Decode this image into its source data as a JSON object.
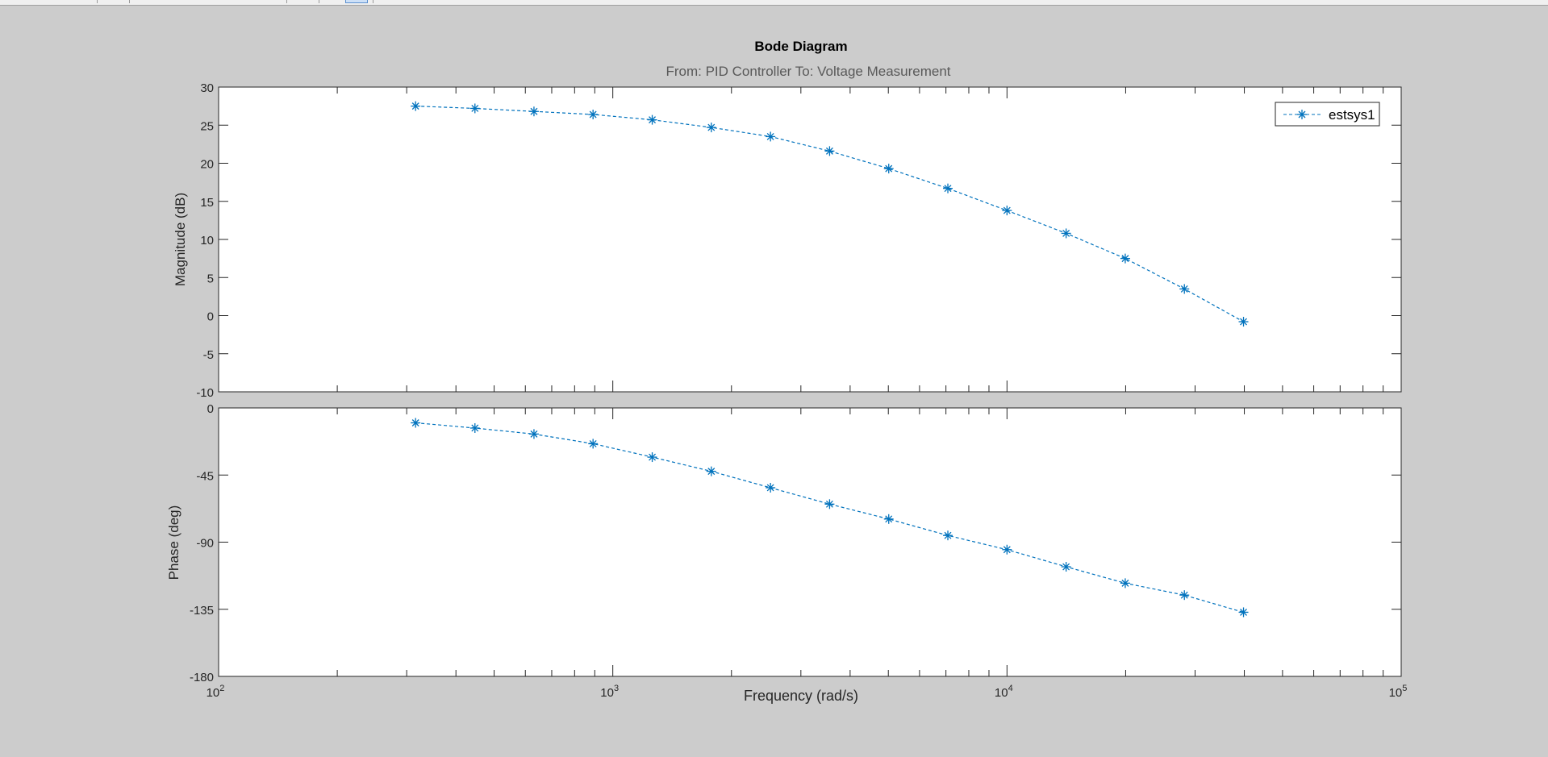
{
  "colors": {
    "figure_background": "#cccccc",
    "axes_background": "#ffffff",
    "axes_edge": "#262626",
    "title_text": "#000000",
    "subtitle_text": "#595959",
    "series_color": "#0072bd"
  },
  "chart_data": {
    "type": "line",
    "title": "Bode Diagram",
    "subtitle": "From: PID Controller  To: Voltage Measurement",
    "xlabel": "Frequency  (rad/s)",
    "x_scale": "log",
    "xlim": [
      100,
      100000
    ],
    "x_ticks": [
      {
        "value": 100,
        "base": "10",
        "exp": "2"
      },
      {
        "value": 1000,
        "base": "10",
        "exp": "3"
      },
      {
        "value": 10000,
        "base": "10",
        "exp": "4"
      },
      {
        "value": 100000,
        "base": "10",
        "exp": "5"
      }
    ],
    "grid": false,
    "legend": {
      "position": "top-right",
      "entries": [
        "estsys1"
      ]
    },
    "marker": "asterisk",
    "line_style": "dashed",
    "x": [
      316,
      447,
      631,
      891,
      1259,
      1778,
      2512,
      3548,
      5012,
      7079,
      10000,
      14125,
      19953,
      28184,
      39811
    ],
    "panels": [
      {
        "ylabel": "Magnitude (dB)",
        "ylim": [
          -10,
          30
        ],
        "yticks": [
          -10,
          -5,
          0,
          5,
          10,
          15,
          20,
          25,
          30
        ],
        "series": [
          {
            "name": "estsys1",
            "values": [
              27.5,
              27.2,
              26.8,
              26.4,
              25.7,
              24.7,
              23.5,
              21.6,
              19.3,
              16.7,
              13.8,
              10.8,
              7.5,
              3.5,
              -0.8
            ]
          }
        ]
      },
      {
        "ylabel": "Phase (deg)",
        "ylim": [
          -180,
          0
        ],
        "yticks": [
          -180,
          -135,
          -90,
          -45,
          0
        ],
        "series": [
          {
            "name": "estsys1",
            "values": [
              -10,
              -13.5,
              -17.5,
              -24,
              -33,
              -42.5,
              -53.5,
              -64.5,
              -74.5,
              -85.5,
              -95,
              -106.5,
              -117.5,
              -125.5,
              -137
            ]
          }
        ]
      }
    ]
  }
}
